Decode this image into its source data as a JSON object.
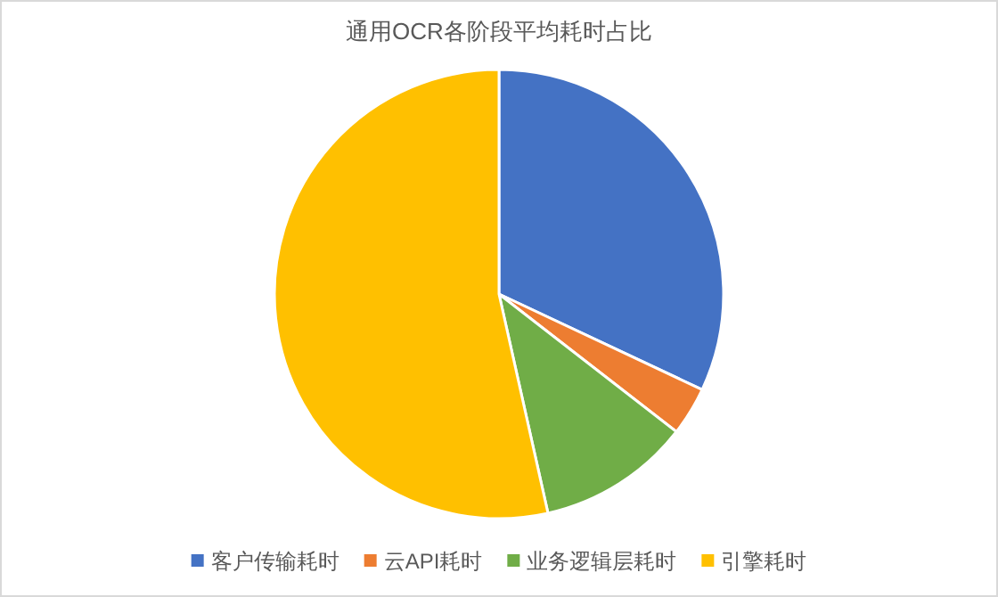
{
  "chart_data": {
    "type": "pie",
    "title": "通用OCR各阶段平均耗时占比",
    "categories": [
      "客户传输耗时",
      "云API耗时",
      "业务逻辑层耗时",
      "引擎耗时"
    ],
    "values": [
      32,
      3.5,
      11,
      53.5
    ],
    "colors": [
      "#4472c4",
      "#ed7d31",
      "#70ad47",
      "#ffc000"
    ],
    "legend": "bottom"
  }
}
